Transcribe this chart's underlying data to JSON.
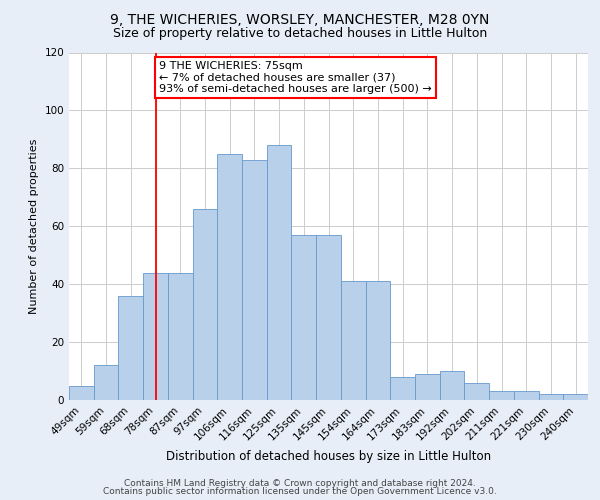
{
  "title_line1": "9, THE WICHERIES, WORSLEY, MANCHESTER, M28 0YN",
  "title_line2": "Size of property relative to detached houses in Little Hulton",
  "xlabel": "Distribution of detached houses by size in Little Hulton",
  "ylabel": "Number of detached properties",
  "categories": [
    "49sqm",
    "59sqm",
    "68sqm",
    "78sqm",
    "87sqm",
    "97sqm",
    "106sqm",
    "116sqm",
    "125sqm",
    "135sqm",
    "145sqm",
    "154sqm",
    "164sqm",
    "173sqm",
    "183sqm",
    "192sqm",
    "202sqm",
    "211sqm",
    "221sqm",
    "230sqm",
    "240sqm"
  ],
  "values": [
    5,
    12,
    36,
    44,
    44,
    66,
    85,
    83,
    88,
    57,
    57,
    41,
    41,
    8,
    9,
    10,
    6,
    3,
    3,
    2,
    2
  ],
  "bar_color": "#b8d0ea",
  "bar_edgecolor": "#6699cc",
  "annotation_text": "9 THE WICHERIES: 75sqm\n← 7% of detached houses are smaller (37)\n93% of semi-detached houses are larger (500) →",
  "annotation_box_color": "white",
  "annotation_box_edgecolor": "red",
  "vline_x_index": 3,
  "ylim": [
    0,
    120
  ],
  "yticks": [
    0,
    20,
    40,
    60,
    80,
    100,
    120
  ],
  "footer_line1": "Contains HM Land Registry data © Crown copyright and database right 2024.",
  "footer_line2": "Contains public sector information licensed under the Open Government Licence v3.0.",
  "background_color": "#e8eef8",
  "plot_background": "#ffffff",
  "grid_color": "#cccccc",
  "title_fontsize": 10,
  "subtitle_fontsize": 9,
  "ylabel_fontsize": 8,
  "xlabel_fontsize": 8.5,
  "tick_fontsize": 7.5,
  "footer_fontsize": 6.5,
  "ann_fontsize": 8
}
